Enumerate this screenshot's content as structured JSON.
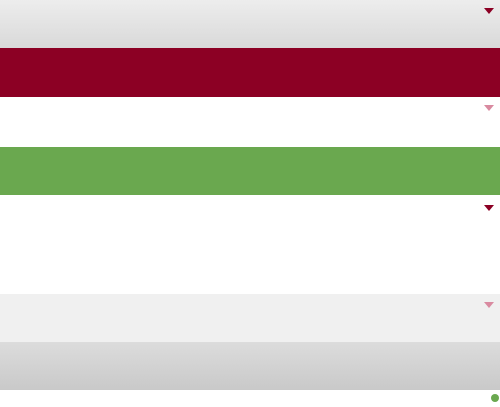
{
  "colors": {
    "accent": "#8c0024",
    "accent_light": "#d98aa0",
    "green": "#6aa84f",
    "gray_band": "#d9d9d9"
  },
  "icons": {
    "dropdown": "chevron-down-icon",
    "status": "status-dot-icon"
  }
}
